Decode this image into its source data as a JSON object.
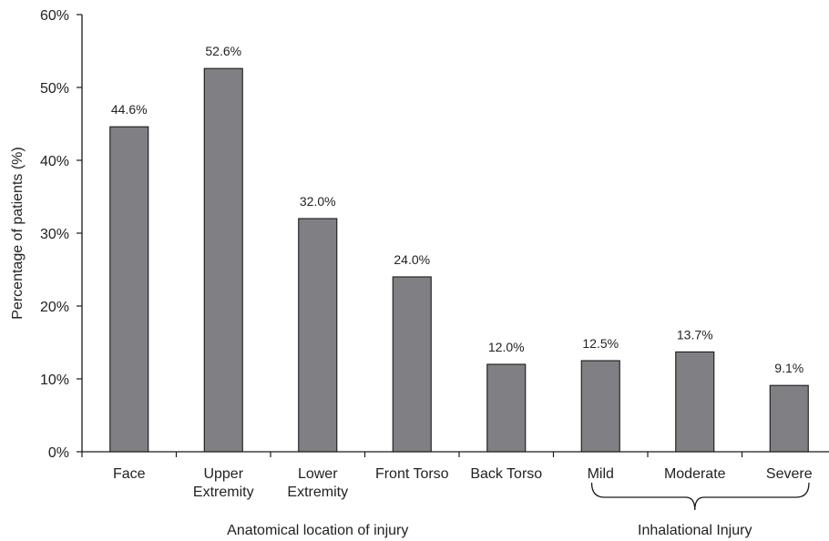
{
  "chart_data": {
    "type": "bar",
    "categories": [
      [
        "Face"
      ],
      [
        "Upper",
        "Extremity"
      ],
      [
        "Lower",
        "Extremity"
      ],
      [
        "Front Torso"
      ],
      [
        "Back Torso"
      ],
      [
        "Mild"
      ],
      [
        "Moderate"
      ],
      [
        "Severe"
      ]
    ],
    "values": [
      44.6,
      52.6,
      32.0,
      24.0,
      12.0,
      12.5,
      13.7,
      9.1
    ],
    "data_labels": [
      "44.6%",
      "52.6%",
      "32.0%",
      "24.0%",
      "12.0%",
      "12.5%",
      "13.7%",
      "9.1%"
    ],
    "title": "",
    "xlabel": "",
    "ylabel": "Percentage of patients (%)",
    "ylim": [
      0,
      60
    ],
    "yticks": [
      0,
      10,
      20,
      30,
      40,
      50,
      60
    ],
    "ytick_labels": [
      "0%",
      "10%",
      "20%",
      "30%",
      "40%",
      "50%",
      "60%"
    ],
    "groups": [
      {
        "label": "Anatomical location of injury",
        "categories": [
          0,
          1,
          2,
          3,
          4
        ],
        "bracket": false
      },
      {
        "label": "Inhalational Injury",
        "categories": [
          5,
          6,
          7
        ],
        "bracket": true
      }
    ],
    "grid": false,
    "legend": "none",
    "bar_color": "#808084",
    "bar_edge_color": "#1a1a1a"
  }
}
